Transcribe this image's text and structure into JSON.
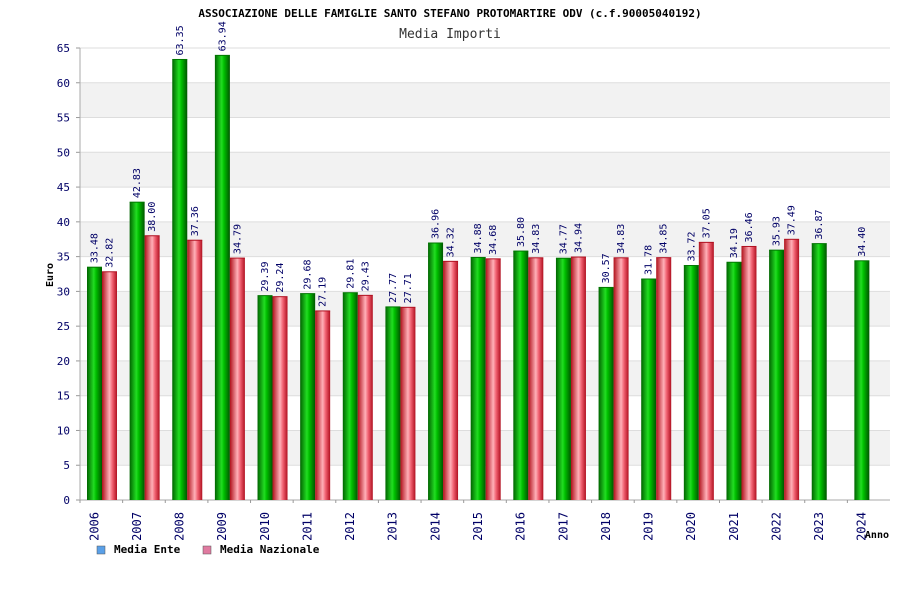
{
  "chart_data": {
    "type": "bar",
    "title": "ASSOCIAZIONE DELLE FAMIGLIE SANTO STEFANO PROTOMARTIRE ODV (c.f.90005040192)",
    "subtitle": "Media Importi",
    "xlabel": "Anno",
    "ylabel": "Euro",
    "ylim": [
      0,
      65
    ],
    "ytick_step": 5,
    "grid": true,
    "legend_position": "bottom-left",
    "categories": [
      "2006",
      "2007",
      "2008",
      "2009",
      "2010",
      "2011",
      "2012",
      "2013",
      "2014",
      "2015",
      "2016",
      "2017",
      "2018",
      "2019",
      "2020",
      "2021",
      "2022",
      "2023",
      "2024"
    ],
    "series": [
      {
        "name": "Media Ente",
        "color": "#00b000",
        "legend_color": "#5aa0e8",
        "values": [
          33.48,
          42.83,
          63.35,
          63.94,
          29.39,
          29.68,
          29.81,
          27.77,
          36.96,
          34.88,
          35.8,
          34.77,
          30.57,
          31.78,
          33.72,
          34.19,
          35.93,
          36.87,
          34.4
        ],
        "labels": [
          "33.48",
          "42.83",
          "63.35",
          "63.94",
          "29.39",
          "29.68",
          "29.81",
          "27.77",
          "36.96",
          "34.88",
          "35.80",
          "34.77",
          "30.57",
          "31.78",
          "33.72",
          "34.19",
          "35.93",
          "36.87",
          "34.40"
        ]
      },
      {
        "name": "Media Nazionale",
        "color": "#e8303c",
        "legend_color": "#e07aa0",
        "values": [
          32.82,
          38.0,
          37.36,
          34.79,
          29.24,
          27.19,
          29.43,
          27.71,
          34.32,
          34.68,
          34.83,
          34.94,
          34.83,
          34.85,
          37.05,
          36.46,
          37.49,
          null,
          null
        ],
        "labels": [
          "32.82",
          "38.00",
          "37.36",
          "34.79",
          "29.24",
          "27.19",
          "29.43",
          "27.71",
          "34.32",
          "34.68",
          "34.83",
          "34.94",
          "34.83",
          "34.85",
          "37.05",
          "36.46",
          "37.49",
          null,
          null
        ]
      }
    ]
  }
}
